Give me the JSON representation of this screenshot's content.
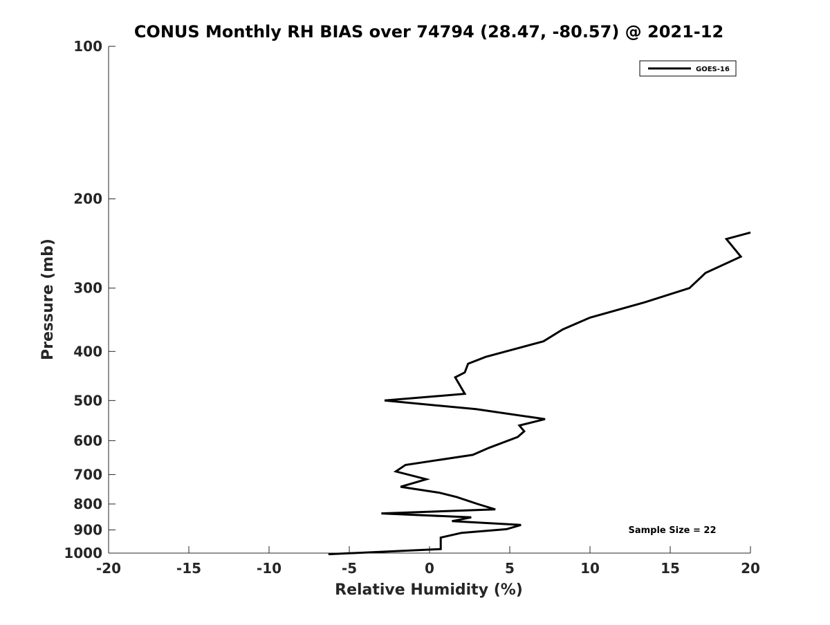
{
  "chart_data": {
    "type": "line",
    "title": "CONUS Monthly RH BIAS over 74794 (28.47, -80.57) @ 2021-12",
    "xlabel": "Relative Humidity (%)",
    "ylabel": "Pressure (mb)",
    "xlim": [
      -20,
      20
    ],
    "ylim": [
      100,
      1000
    ],
    "y_scale": "log",
    "y_reversed": true,
    "x_ticks": [
      -20,
      -15,
      -10,
      -5,
      0,
      5,
      10,
      15,
      20
    ],
    "y_ticks": [
      100,
      200,
      300,
      400,
      500,
      600,
      700,
      800,
      900,
      1000
    ],
    "grid": false,
    "legend": {
      "position": "top-right",
      "entries": [
        "GOES-16"
      ]
    },
    "annotation": "Sample Size = 22",
    "series": [
      {
        "name": "GOES-16",
        "color": "#000000",
        "x": [
          20.0,
          18.5,
          19.4,
          17.2,
          16.2,
          13.4,
          10.0,
          8.3,
          7.1,
          3.5,
          2.4,
          2.2,
          1.6,
          2.2,
          -2.8,
          2.9,
          7.2,
          5.6,
          5.9,
          5.5,
          3.7,
          2.7,
          -1.5,
          -2.1,
          -0.2,
          -1.8,
          0.6,
          1.7,
          3.0,
          4.1,
          -3.0,
          2.6,
          1.4,
          5.7,
          4.8,
          2.0,
          0.7,
          0.7,
          -6.3
        ],
        "y": [
          233,
          240,
          260,
          280,
          300,
          320,
          343,
          362,
          382,
          410,
          423,
          440,
          450,
          485,
          500,
          520,
          544,
          560,
          575,
          590,
          620,
          640,
          670,
          690,
          715,
          740,
          760,
          775,
          800,
          820,
          835,
          850,
          865,
          880,
          897,
          912,
          932,
          982,
          1005
        ]
      }
    ]
  }
}
